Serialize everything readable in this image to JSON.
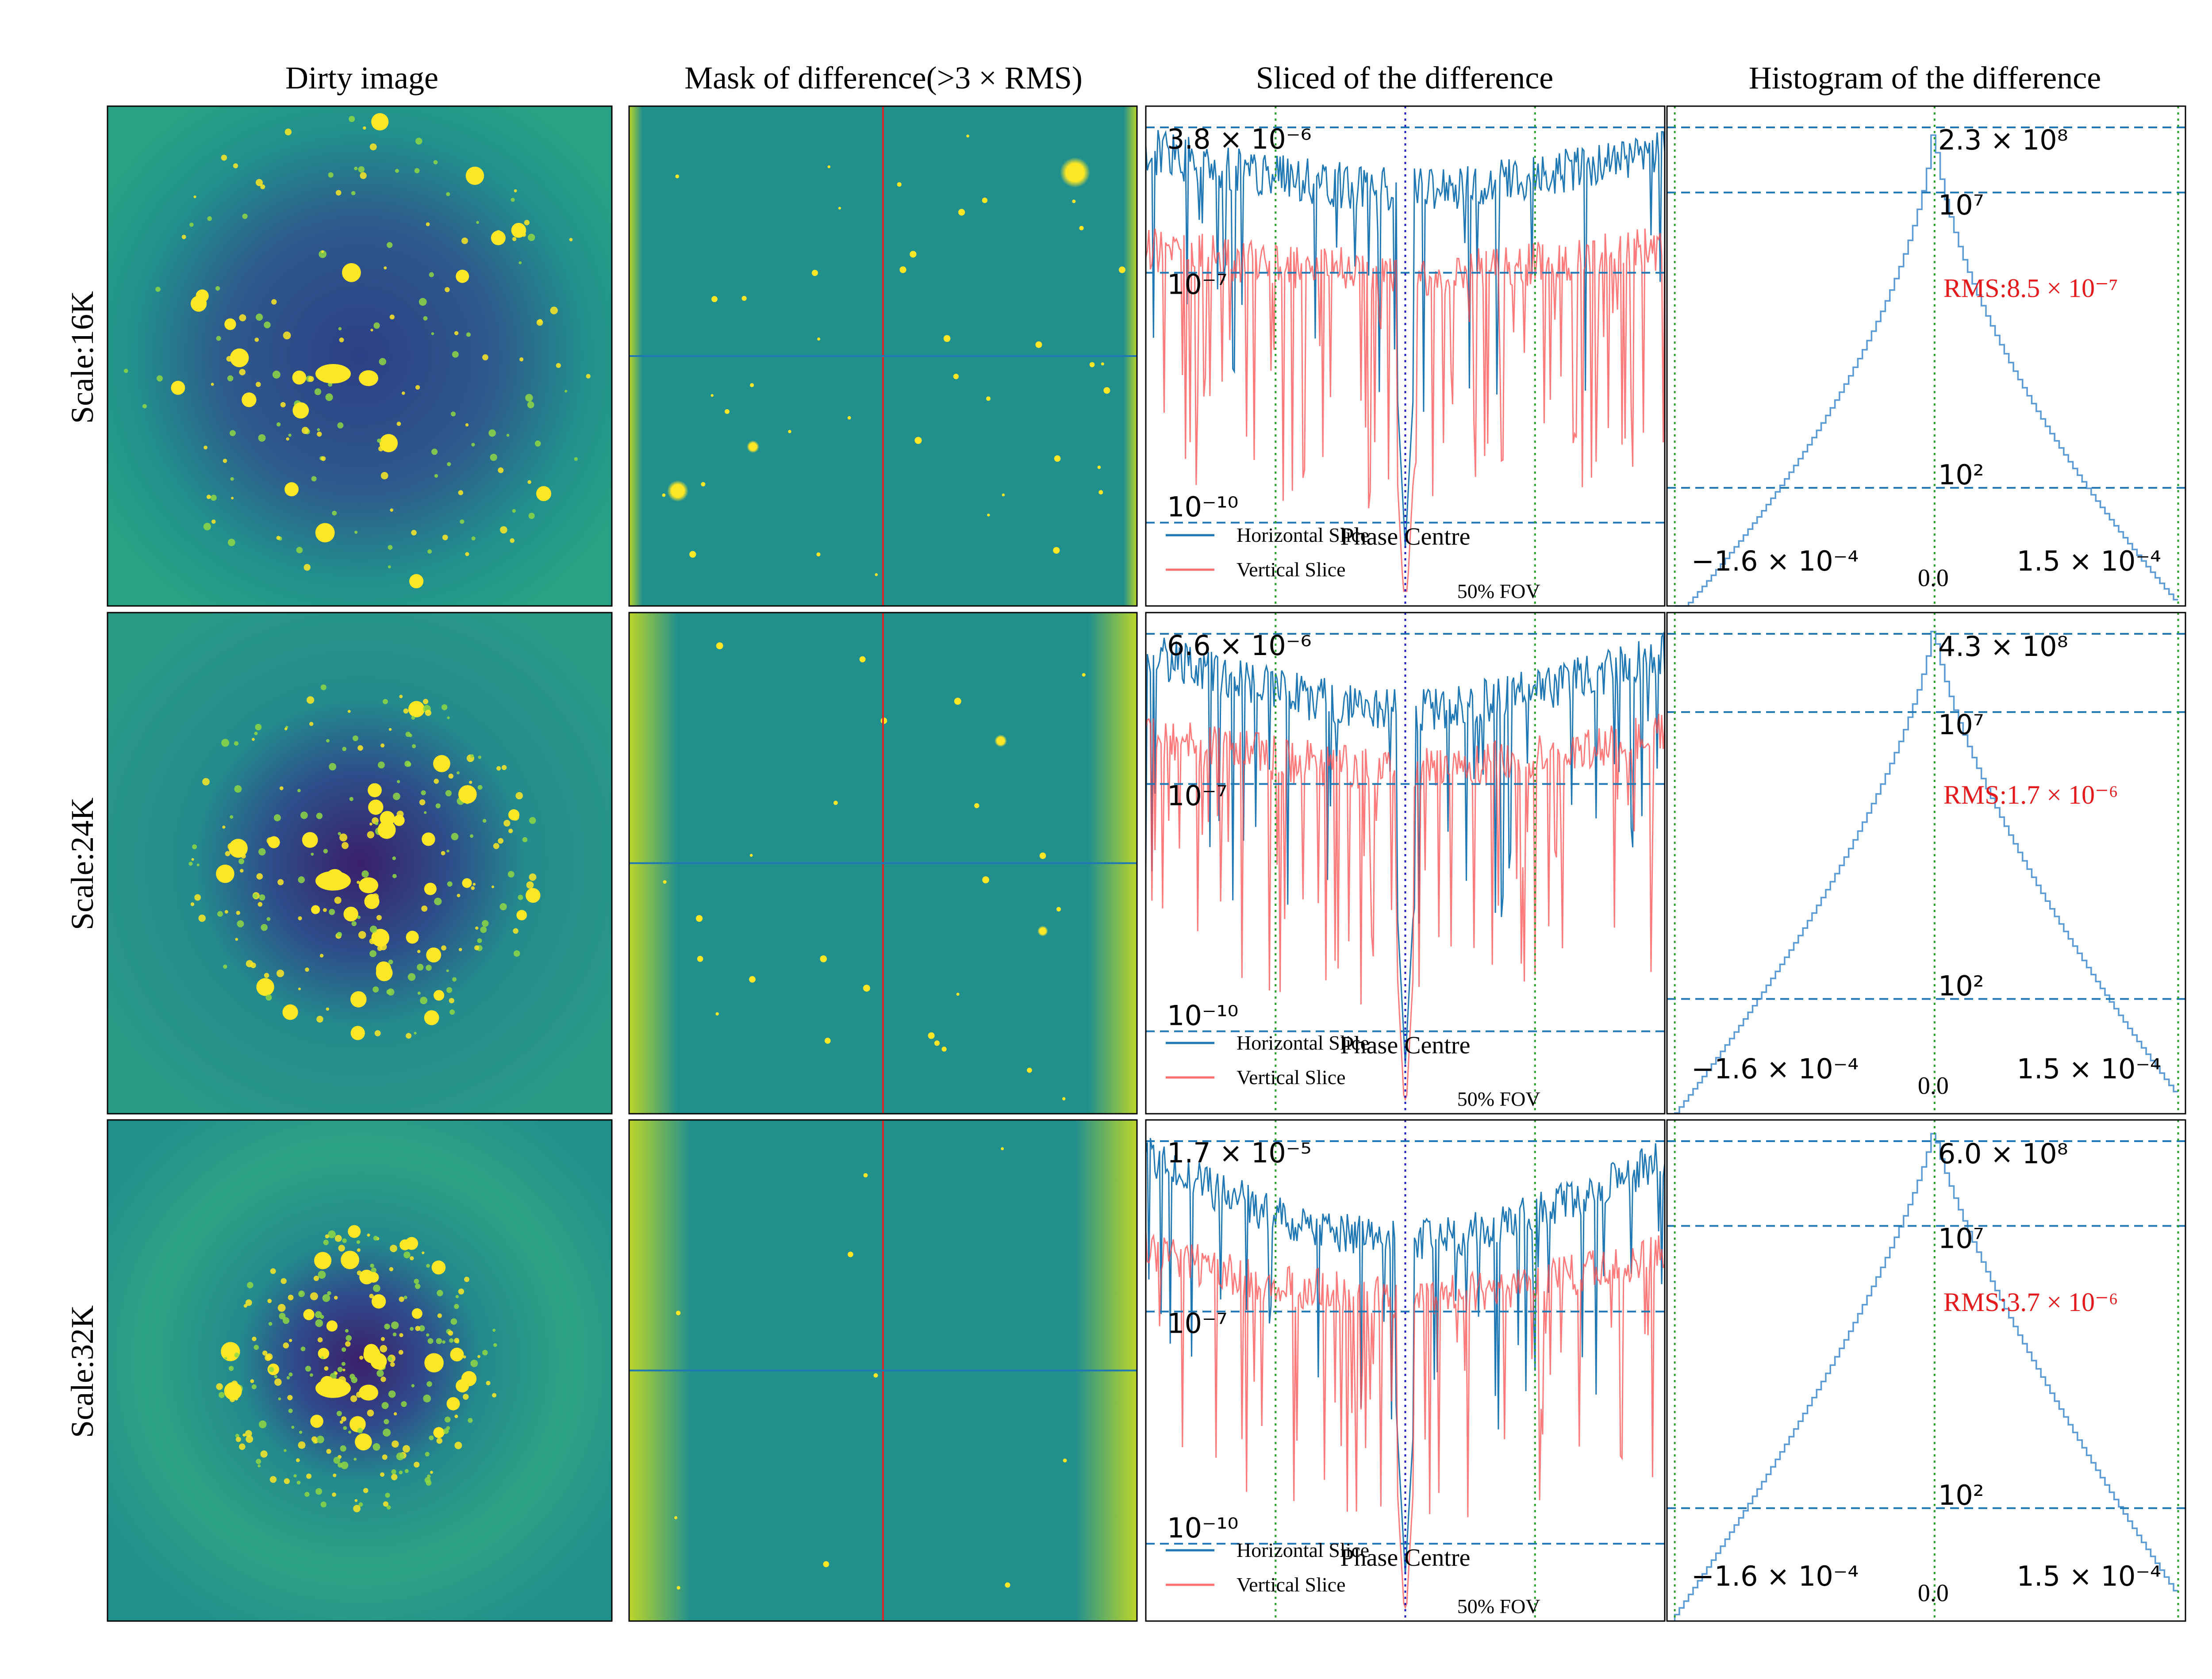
{
  "figure": {
    "column_titles": [
      "Dirty image",
      "Mask of difference(>3 × RMS)",
      "Sliced of the difference",
      "Histogram of the difference"
    ],
    "row_labels": [
      "Scale:16K",
      "Scale:24K",
      "Scale:32K"
    ]
  },
  "colors": {
    "viridis_bg": "#21908d",
    "viridis_dark": "#3b1f6a",
    "viridis_yellow": "#fde725",
    "horizontal": "#1f77b4",
    "vertical": "#ff4d4d",
    "dashed": "#1f77b4",
    "fov_line": "#2ca02c",
    "phase_line": "#1f1fbf",
    "rms_text": "#e41a1c",
    "mask_vline": "#d62728",
    "mask_hline": "#1f77b4"
  },
  "chart_data": [
    {
      "type": "line",
      "panel": "slice",
      "row": "Scale:16K",
      "title": "Sliced of the difference",
      "yscale": "log",
      "ylim": [
        1e-11,
        1e-05
      ],
      "series": [
        {
          "name": "Horizontal Slice",
          "level_center": 1e-06,
          "level_edge": 3e-06
        },
        {
          "name": "Vertical Slice",
          "level_center": 1e-07,
          "level_edge": 2e-07
        }
      ],
      "hlines": {
        "max": "3.8 × 10⁻⁶",
        "mid": "10⁻⁷",
        "min": "10⁻¹⁰"
      },
      "annotations": {
        "phase": "Phase Centre",
        "fov": "50% FOV"
      },
      "legend": [
        "Horizontal Slice",
        "Vertical Slice"
      ]
    },
    {
      "type": "line",
      "panel": "slice",
      "row": "Scale:24K",
      "title": "Sliced of the difference",
      "yscale": "log",
      "ylim": [
        1e-11,
        1.2e-05
      ],
      "series": [
        {
          "name": "Horizontal Slice",
          "level_center": 8e-07,
          "level_edge": 4e-06
        },
        {
          "name": "Vertical Slice",
          "level_center": 1.5e-07,
          "level_edge": 4e-07
        }
      ],
      "hlines": {
        "max": "6.6 × 10⁻⁶",
        "mid": "10⁻⁷",
        "min": "10⁻¹⁰"
      },
      "annotations": {
        "phase": "Phase Centre",
        "fov": "50% FOV"
      },
      "legend": [
        "Horizontal Slice",
        "Vertical Slice"
      ]
    },
    {
      "type": "line",
      "panel": "slice",
      "row": "Scale:32K",
      "title": "Sliced of the difference",
      "yscale": "log",
      "ylim": [
        1e-11,
        3e-05
      ],
      "series": [
        {
          "name": "Horizontal Slice",
          "level_center": 8e-07,
          "level_edge": 1e-05
        },
        {
          "name": "Vertical Slice",
          "level_center": 1.5e-07,
          "level_edge": 6e-07
        }
      ],
      "hlines": {
        "max": "1.7 × 10⁻⁵",
        "mid": "10⁻⁷",
        "min": "10⁻¹⁰"
      },
      "annotations": {
        "phase": "Phase Centre",
        "fov": "50% FOV"
      },
      "legend": [
        "Horizontal Slice",
        "Vertical Slice"
      ]
    },
    {
      "type": "bar",
      "panel": "histogram",
      "row": "Scale:16K",
      "title": "Histogram of the difference",
      "yscale": "log",
      "xlim": [
        -0.00016,
        0.00015
      ],
      "peak": 230000000.0,
      "sigma": 8.5e-07,
      "labels": {
        "peak": "2.3 × 10⁸",
        "mid": "10⁷",
        "low": "10²",
        "xmin": "−1.6 × 10⁻⁴",
        "xzero": "0.0",
        "xmax": "1.5 × 10⁻⁴",
        "rms": "RMS:8.5 × 10⁻⁷"
      }
    },
    {
      "type": "bar",
      "panel": "histogram",
      "row": "Scale:24K",
      "title": "Histogram of the difference",
      "yscale": "log",
      "xlim": [
        -0.00016,
        0.00015
      ],
      "peak": 430000000.0,
      "sigma": 1.7e-06,
      "labels": {
        "peak": "4.3 × 10⁸",
        "mid": "10⁷",
        "low": "10²",
        "xmin": "−1.6 × 10⁻⁴",
        "xzero": "0.0",
        "xmax": "1.5 × 10⁻⁴",
        "rms": "RMS:1.7 × 10⁻⁶"
      }
    },
    {
      "type": "bar",
      "panel": "histogram",
      "row": "Scale:32K",
      "title": "Histogram of the difference",
      "yscale": "log",
      "xlim": [
        -0.00016,
        0.00015
      ],
      "peak": 600000000.0,
      "sigma": 3.7e-06,
      "labels": {
        "peak": "6.0 × 10⁸",
        "mid": "10⁷",
        "low": "10²",
        "xmin": "−1.6 × 10⁻⁴",
        "xzero": "0.0",
        "xmax": "1.5 × 10⁻⁴",
        "rms": "RMS:3.7 × 10⁻⁶"
      }
    }
  ]
}
